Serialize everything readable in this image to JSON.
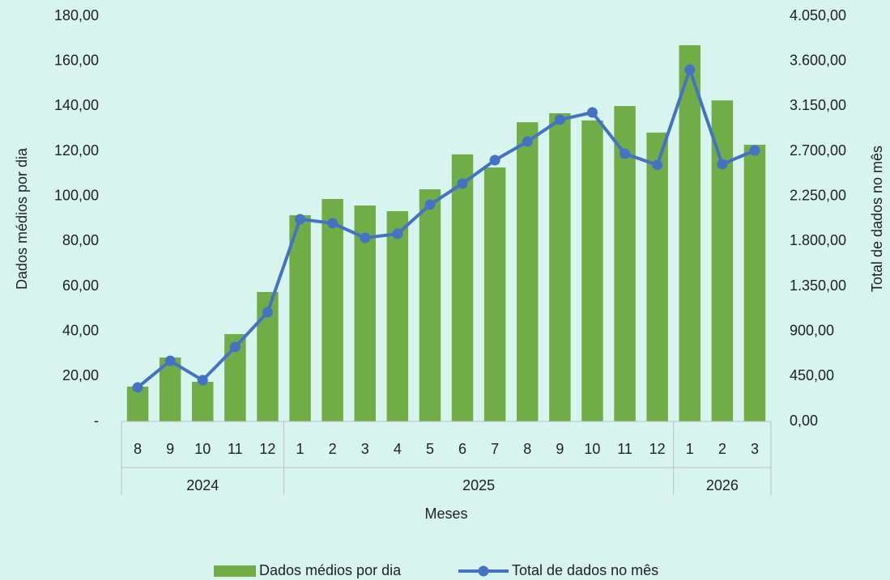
{
  "chart_data": {
    "type": "bar-line",
    "categories": [
      "8",
      "9",
      "10",
      "11",
      "12",
      "1",
      "2",
      "3",
      "4",
      "5",
      "6",
      "7",
      "8",
      "9",
      "10",
      "11",
      "12",
      "1",
      "2",
      "3"
    ],
    "groups": [
      {
        "label": "2024",
        "count": 5
      },
      {
        "label": "2025",
        "count": 12
      },
      {
        "label": "2026",
        "count": 3
      }
    ],
    "x_label": "Meses",
    "y_label": "Dados médios por dia",
    "y2_label": "Total de dados no mês",
    "series": [
      {
        "name": "Dados médios por dia",
        "type": "bar",
        "color": "#70ad47",
        "values": [
          15.5,
          28.4,
          17.6,
          38.8,
          57.5,
          91.6,
          98.8,
          95.9,
          93.4,
          103.1,
          118.6,
          112.8,
          132.9,
          136.9,
          133.7,
          140.1,
          128.3,
          167.1,
          142.6,
          122.9
        ]
      },
      {
        "name": "Total de dados no mês",
        "type": "line",
        "axis": "y2",
        "color": "#4472c4",
        "values": [
          340,
          606,
          412,
          744,
          1091,
          2021,
          1981,
          1835,
          1875,
          2166,
          2377,
          2611,
          2797,
          3015,
          3088,
          2676,
          2563,
          3516,
          2571,
          2708
        ]
      }
    ],
    "ylim": [
      0,
      180
    ],
    "yticks": [
      {
        "value": 0,
        "label": "-"
      },
      {
        "value": 20,
        "label": "20,00"
      },
      {
        "value": 40,
        "label": "40,00"
      },
      {
        "value": 60,
        "label": "60,00"
      },
      {
        "value": 80,
        "label": "80,00"
      },
      {
        "value": 100,
        "label": "100,00"
      },
      {
        "value": 120,
        "label": "120,00"
      },
      {
        "value": 140,
        "label": "140,00"
      },
      {
        "value": 160,
        "label": "160,00"
      },
      {
        "value": 180,
        "label": "180,00"
      }
    ],
    "y2lim": [
      0,
      4050
    ],
    "y2ticks": [
      {
        "value": 0,
        "label": "0,00"
      },
      {
        "value": 450,
        "label": "450,00"
      },
      {
        "value": 900,
        "label": "900,00"
      },
      {
        "value": 1350,
        "label": "1.350,00"
      },
      {
        "value": 1800,
        "label": "1.800,00"
      },
      {
        "value": 2250,
        "label": "2.250,00"
      },
      {
        "value": 2700,
        "label": "2.700,00"
      },
      {
        "value": 3150,
        "label": "3.150,00"
      },
      {
        "value": 3600,
        "label": "3.600,00"
      },
      {
        "value": 4050,
        "label": "4.050,00"
      }
    ],
    "legend": "bottom"
  }
}
